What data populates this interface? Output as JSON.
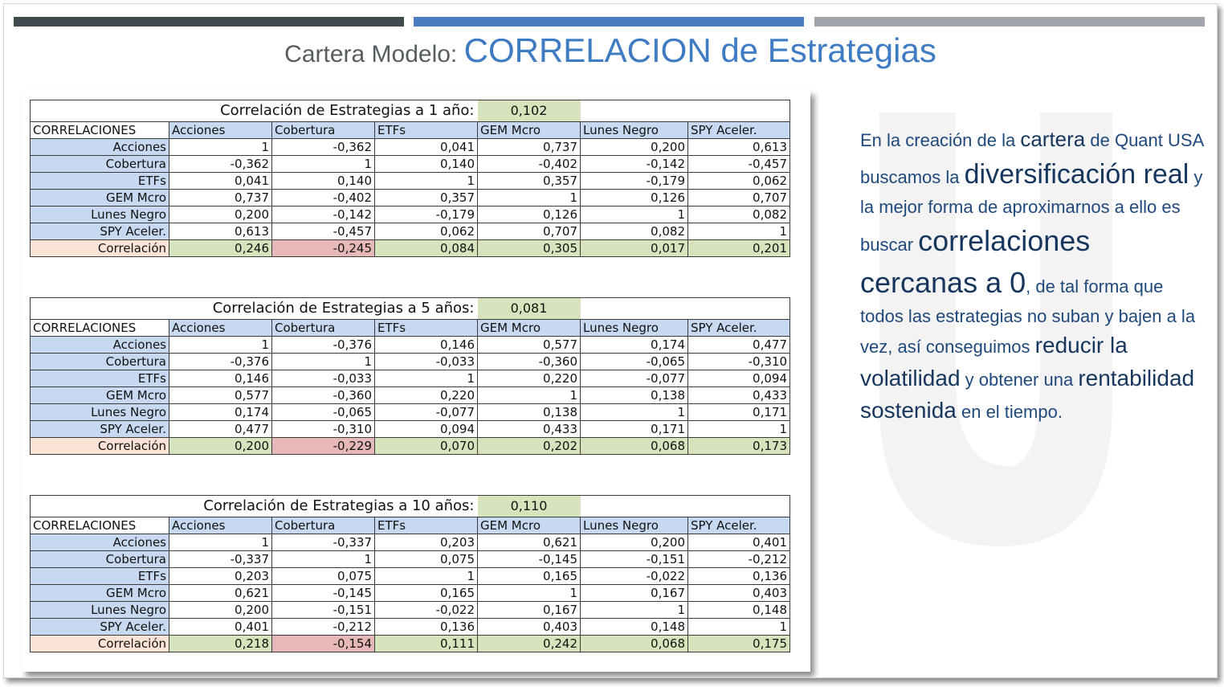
{
  "header": {
    "title_prefix": "Cartera Modelo: ",
    "title_main": "CORRELACION de Estrategias"
  },
  "tables": [
    {
      "title": "Correlación de Estrategias a 1 año:",
      "overall": "0,102",
      "corner": "CORRELACIONES",
      "columns": [
        "Acciones",
        "Cobertura",
        "ETFs",
        "GEM Mcro",
        "Lunes Negro",
        "SPY Aceler."
      ],
      "rows": [
        {
          "label": "Acciones",
          "values": [
            "1",
            "-0,362",
            "0,041",
            "0,737",
            "0,200",
            "0,613"
          ]
        },
        {
          "label": "Cobertura",
          "values": [
            "-0,362",
            "1",
            "0,140",
            "-0,402",
            "-0,142",
            "-0,457"
          ]
        },
        {
          "label": "ETFs",
          "values": [
            "0,041",
            "0,140",
            "1",
            "0,357",
            "-0,179",
            "0,062"
          ]
        },
        {
          "label": "GEM Mcro",
          "values": [
            "0,737",
            "-0,402",
            "0,357",
            "1",
            "0,126",
            "0,707"
          ]
        },
        {
          "label": "Lunes Negro",
          "values": [
            "0,200",
            "-0,142",
            "-0,179",
            "0,126",
            "1",
            "0,082"
          ]
        },
        {
          "label": "SPY Aceler.",
          "values": [
            "0,613",
            "-0,457",
            "0,062",
            "0,707",
            "0,082",
            "1"
          ]
        }
      ],
      "summary": {
        "label": "Correlación",
        "values": [
          "0,246",
          "-0,245",
          "0,084",
          "0,305",
          "0,017",
          "0,201"
        ]
      }
    },
    {
      "title": "Correlación de Estrategias a 5 años:",
      "overall": "0,081",
      "corner": "CORRELACIONES",
      "columns": [
        "Acciones",
        "Cobertura",
        "ETFs",
        "GEM Mcro",
        "Lunes Negro",
        "SPY Aceler."
      ],
      "rows": [
        {
          "label": "Acciones",
          "values": [
            "1",
            "-0,376",
            "0,146",
            "0,577",
            "0,174",
            "0,477"
          ]
        },
        {
          "label": "Cobertura",
          "values": [
            "-0,376",
            "1",
            "-0,033",
            "-0,360",
            "-0,065",
            "-0,310"
          ]
        },
        {
          "label": "ETFs",
          "values": [
            "0,146",
            "-0,033",
            "1",
            "0,220",
            "-0,077",
            "0,094"
          ]
        },
        {
          "label": "GEM Mcro",
          "values": [
            "0,577",
            "-0,360",
            "0,220",
            "1",
            "0,138",
            "0,433"
          ]
        },
        {
          "label": "Lunes Negro",
          "values": [
            "0,174",
            "-0,065",
            "-0,077",
            "0,138",
            "1",
            "0,171"
          ]
        },
        {
          "label": "SPY Aceler.",
          "values": [
            "0,477",
            "-0,310",
            "0,094",
            "0,433",
            "0,171",
            "1"
          ]
        }
      ],
      "summary": {
        "label": "Correlación",
        "values": [
          "0,200",
          "-0,229",
          "0,070",
          "0,202",
          "0,068",
          "0,173"
        ]
      }
    },
    {
      "title": "Correlación de Estrategias a 10 años:",
      "overall": "0,110",
      "corner": "CORRELACIONES",
      "columns": [
        "Acciones",
        "Cobertura",
        "ETFs",
        "GEM Mcro",
        "Lunes Negro",
        "SPY Aceler."
      ],
      "rows": [
        {
          "label": "Acciones",
          "values": [
            "1",
            "-0,337",
            "0,203",
            "0,621",
            "0,200",
            "0,401"
          ]
        },
        {
          "label": "Cobertura",
          "values": [
            "-0,337",
            "1",
            "0,075",
            "-0,145",
            "-0,151",
            "-0,212"
          ]
        },
        {
          "label": "ETFs",
          "values": [
            "0,203",
            "0,075",
            "1",
            "0,165",
            "-0,022",
            "0,136"
          ]
        },
        {
          "label": "GEM Mcro",
          "values": [
            "0,621",
            "-0,145",
            "0,165",
            "1",
            "0,167",
            "0,403"
          ]
        },
        {
          "label": "Lunes Negro",
          "values": [
            "0,200",
            "-0,151",
            "-0,022",
            "0,167",
            "1",
            "0,148"
          ]
        },
        {
          "label": "SPY Aceler.",
          "values": [
            "0,401",
            "-0,212",
            "0,136",
            "0,403",
            "0,148",
            "1"
          ]
        }
      ],
      "summary": {
        "label": "Correlación",
        "values": [
          "0,218",
          "-0,154",
          "0,111",
          "0,242",
          "0,068",
          "0,175"
        ]
      }
    }
  ],
  "description": {
    "s1": "En la creación de la ",
    "s2": "cartera",
    "s3": " de Quant USA buscamos la ",
    "s4": "diversificación real",
    "s5": " y la mejor forma de aproximarnos a ello es  buscar ",
    "s6": "correlaciones cercanas a 0",
    "s7": ", de tal forma que todos las estrategias no suban y bajen a la vez, así  conseguimos ",
    "s8": "reducir la volatilidad",
    "s9": " y obtener una ",
    "s10": "rentabilidad sostenida",
    "s11": " en el tiempo."
  },
  "colors": {
    "accent_blue": "#3f7bc3",
    "bar_dark": "#404a4f",
    "bar_gray": "#9fa5aa",
    "header_blue": "#c6d9f0",
    "cell_green": "#d6e3bc",
    "cell_red": "#e6b9b8",
    "summary_label": "#fbe4d5",
    "text_navy": "#1f497d"
  }
}
